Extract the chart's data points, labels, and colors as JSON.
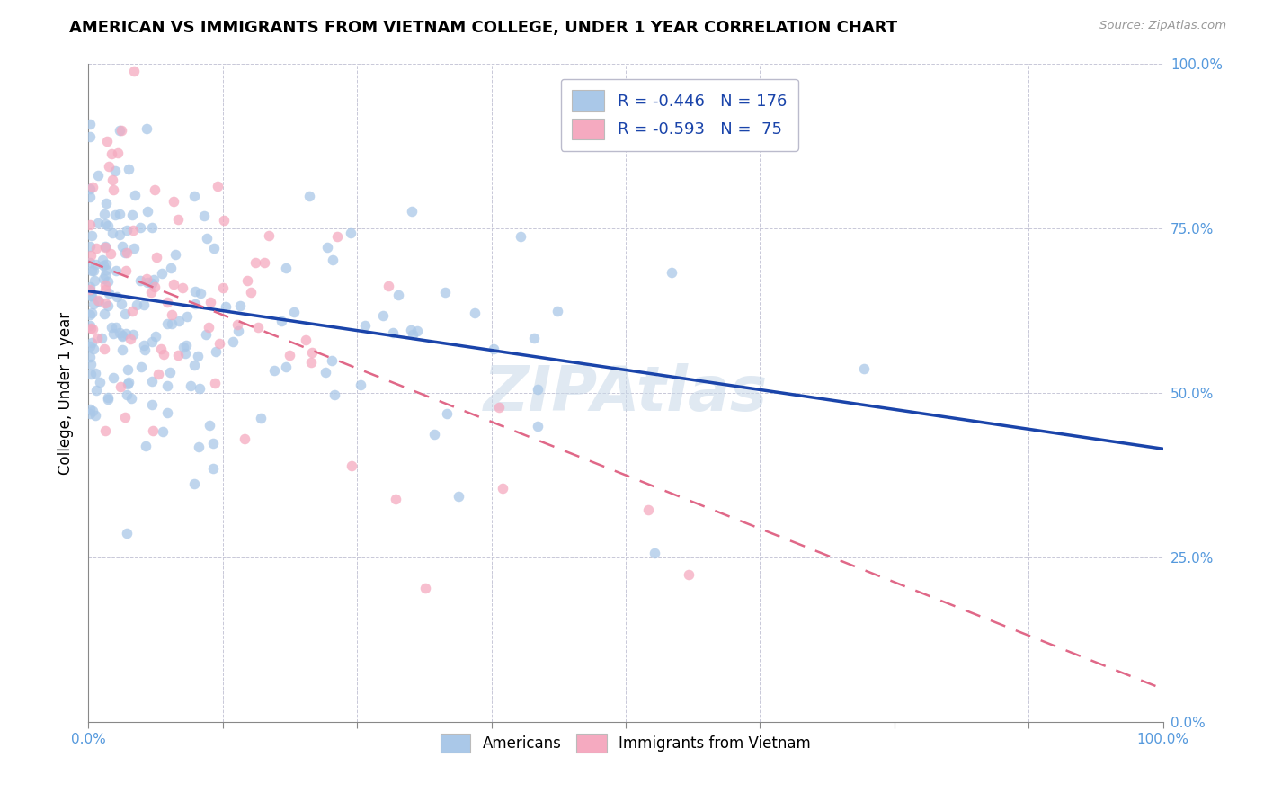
{
  "title": "AMERICAN VS IMMIGRANTS FROM VIETNAM COLLEGE, UNDER 1 YEAR CORRELATION CHART",
  "source": "Source: ZipAtlas.com",
  "ylabel": "College, Under 1 year",
  "american_color": "#aac8e8",
  "vietnam_color": "#f5aac0",
  "american_line_color": "#1a44aa",
  "vietnam_line_color": "#e06888",
  "background_color": "#ffffff",
  "grid_color": "#c8c8d8",
  "R_american": -0.446,
  "N_american": 176,
  "R_vietnam": -0.593,
  "N_vietnam": 75,
  "tick_color": "#5599dd",
  "watermark_text": "ZIPAtlas",
  "legend1_r": "R = -0.446",
  "legend1_n": "N = 176",
  "legend2_r": "R = -0.593",
  "legend2_n": "N =  75",
  "bottom_legend1": "Americans",
  "bottom_legend2": "Immigrants from Vietnam",
  "am_line_x0": 0.0,
  "am_line_y0": 0.655,
  "am_line_x1": 1.0,
  "am_line_y1": 0.415,
  "vn_line_x0": 0.0,
  "vn_line_y0": 0.7,
  "vn_line_x1": 1.0,
  "vn_line_y1": 0.05,
  "xlim": [
    0,
    1
  ],
  "ylim": [
    0,
    1
  ],
  "xticks": [
    0,
    0.125,
    0.25,
    0.375,
    0.5,
    0.625,
    0.75,
    0.875,
    1.0
  ],
  "yticks": [
    0,
    0.25,
    0.5,
    0.75,
    1.0
  ],
  "right_ytick_labels": [
    "0.0%",
    "25.0%",
    "50.0%",
    "75.0%",
    "100.0%"
  ]
}
